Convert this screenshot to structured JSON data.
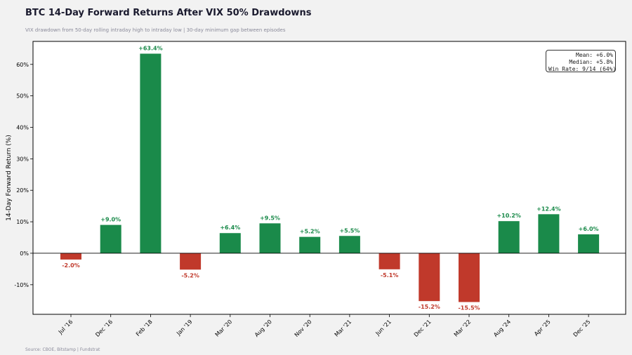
{
  "header": {
    "title": "BTC 14-Day Forward Returns After VIX 50% Drawdowns",
    "subtitle": "VIX drawdown from 50-day rolling intraday high to intraday low | 30-day minimum gap between episodes"
  },
  "footer": {
    "source": "Source: CBOE, Bitstamp | Fundstrat"
  },
  "stats_box": {
    "mean": "Mean: +6.0%",
    "median": "Median: +5.8%",
    "win_rate": "Win Rate: 9/14 (64%)"
  },
  "colors": {
    "positive": "#1a8a4a",
    "negative": "#c0392b",
    "axis": "#000000"
  },
  "chart_data": {
    "type": "bar",
    "title": "BTC 14-Day Forward Returns After VIX 50% Drawdowns",
    "xlabel": "",
    "ylabel": "14-Day Forward Return (%)",
    "categories": [
      "Jul '16",
      "Dec '16",
      "Feb '18",
      "Jan '19",
      "Mar '20",
      "Aug '20",
      "Nov '20",
      "Mar '21",
      "Jun '21",
      "Dec '21",
      "Mar '22",
      "Aug '24",
      "Apr '25",
      "Dec '25"
    ],
    "values": [
      -2.0,
      9.0,
      63.4,
      -5.2,
      6.4,
      9.5,
      5.2,
      5.5,
      -5.1,
      -15.2,
      -15.5,
      10.2,
      12.4,
      6.0
    ],
    "data_labels": [
      "-2.0%",
      "+9.0%",
      "+63.4%",
      "-5.2%",
      "+6.4%",
      "+9.5%",
      "+5.2%",
      "+5.5%",
      "-5.1%",
      "-15.2%",
      "-15.5%",
      "+10.2%",
      "+12.4%",
      "+6.0%"
    ],
    "yticks": [
      -10,
      0,
      10,
      20,
      30,
      40,
      50,
      60
    ],
    "ytick_labels": [
      "-10%",
      "0%",
      "10%",
      "20%",
      "30%",
      "40%",
      "50%",
      "60%"
    ],
    "ylim": [
      -19.4,
      67.3
    ],
    "grid": false,
    "zero_line": true
  }
}
